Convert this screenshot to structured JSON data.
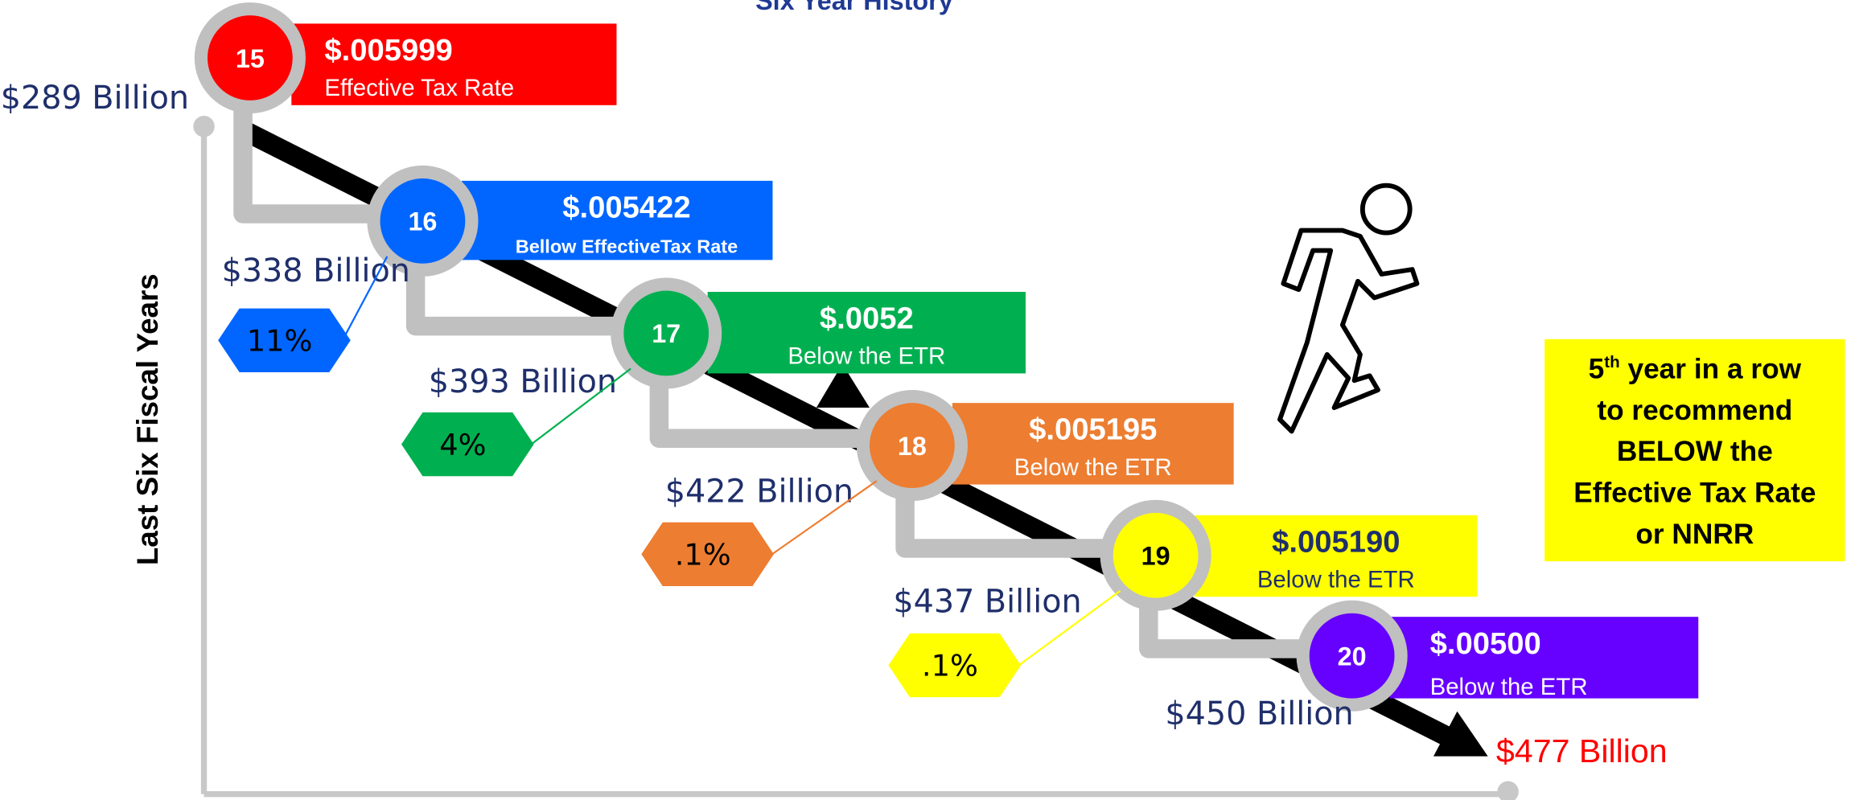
{
  "header": {
    "title": "Six  Year History",
    "y_axis_label": "Last Six Fiscal Years"
  },
  "steps": [
    {
      "year": "15",
      "rate": "$.005999",
      "note": "Effective Tax Rate",
      "value": "$289 Billion",
      "color": "#ff0000"
    },
    {
      "year": "16",
      "rate": "$.005422",
      "note": "Bellow  EffectiveTax Rate",
      "value": "$338 Billion",
      "change": "11%",
      "color": "#0066ff"
    },
    {
      "year": "17",
      "rate": "$.0052",
      "note": "Below the ETR",
      "value": "$393 Billion",
      "change": "4%",
      "color": "#00b050"
    },
    {
      "year": "18",
      "rate": "$.005195",
      "note": "Below the ETR",
      "value": "$422 Billion",
      "change": ".1%",
      "color": "#ed7d31"
    },
    {
      "year": "19",
      "rate": "$.005190",
      "note": "Below the ETR",
      "value": "$437 Billion",
      "change": ".1%",
      "color": "#ffff00"
    },
    {
      "year": "20",
      "rate": "$.00500",
      "note": "Below the ETR",
      "value": "$450 Billion",
      "color": "#6600ff"
    }
  ],
  "final_value": "$477 Billion",
  "callout": {
    "line1_num": "5",
    "line1_sup": "th",
    "line1_rest": " year in a row",
    "line2": "to recommend",
    "line3": "BELOW the",
    "line4": "Effective Tax Rate",
    "line5": "or NNRR"
  }
}
